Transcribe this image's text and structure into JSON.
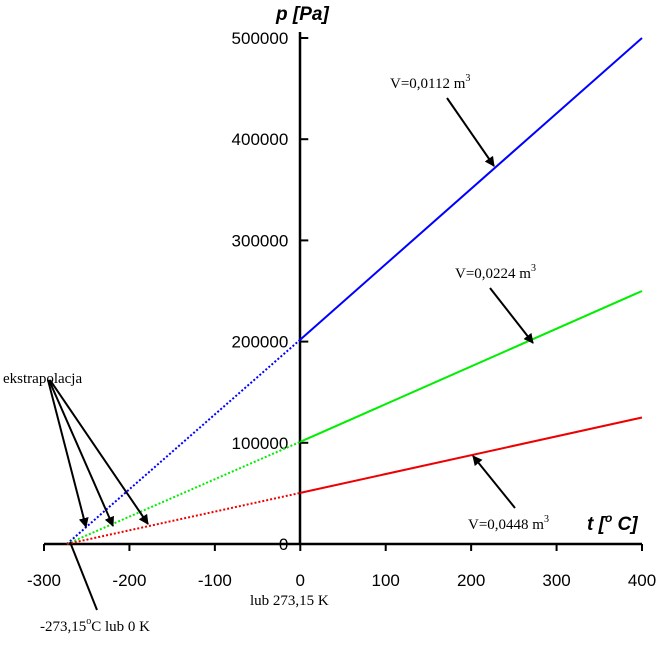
{
  "chart_data": {
    "type": "line",
    "title": "",
    "xlabel": "t [°C]",
    "ylabel": "p [Pa]",
    "xlim": [
      -300,
      400
    ],
    "ylim": [
      0,
      500000
    ],
    "x_ticks": [
      -300,
      -200,
      -100,
      0,
      100,
      200,
      300,
      400
    ],
    "y_ticks": [
      0,
      100000,
      200000,
      300000,
      400000,
      500000
    ],
    "grid": false,
    "series": [
      {
        "name": "V=0,0112 m3",
        "color": "#0000ff",
        "x_solid": [
          0,
          400
        ],
        "y_solid": [
          202000,
          500000
        ],
        "x_extrapolated": [
          -273.15,
          0
        ],
        "y_extrapolated": [
          0,
          202000
        ],
        "label_value": "V=0,0112 m",
        "label_exp": "3"
      },
      {
        "name": "V=0,0224 m3",
        "color": "#00ee00",
        "x_solid": [
          0,
          400
        ],
        "y_solid": [
          101000,
          250000
        ],
        "x_extrapolated": [
          -273.15,
          0
        ],
        "y_extrapolated": [
          0,
          101000
        ],
        "label_value": "V=0,0224 m",
        "label_exp": "3"
      },
      {
        "name": "V=0,0448 m3",
        "color": "#ee0000",
        "x_solid": [
          0,
          400
        ],
        "y_solid": [
          50500,
          125000
        ],
        "x_extrapolated": [
          -273.15,
          0
        ],
        "y_extrapolated": [
          0,
          50500
        ],
        "label_value": "V=0,0448 m",
        "label_exp": "3"
      }
    ],
    "annotations": {
      "extrapolation": "ekstrapolacja",
      "zero_celsius": "lub 273,15 K",
      "absolute_zero_prefix": "-273,15",
      "absolute_zero_sup": "o",
      "absolute_zero_suffix": "C lub 0 K"
    },
    "axis_text": {
      "y_title": "p [Pa]",
      "x_title_prefix": "t [",
      "x_title_sup": "o",
      "x_title_suffix": " C]"
    }
  }
}
